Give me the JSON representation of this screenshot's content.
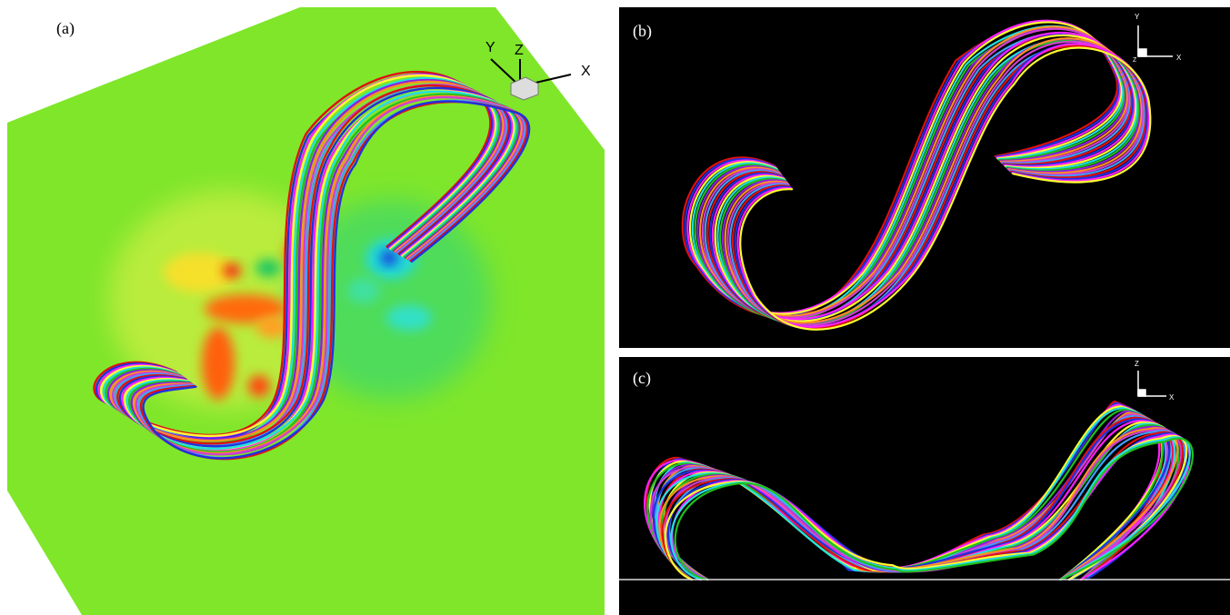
{
  "panels": [
    {
      "label": "(a)",
      "axes": [
        "Y",
        "Z",
        "X"
      ]
    },
    {
      "label": "(b)",
      "axes": [
        "Y",
        "X",
        "Z"
      ]
    },
    {
      "label": "(c)",
      "axes": [
        "Z",
        "X"
      ]
    }
  ]
}
